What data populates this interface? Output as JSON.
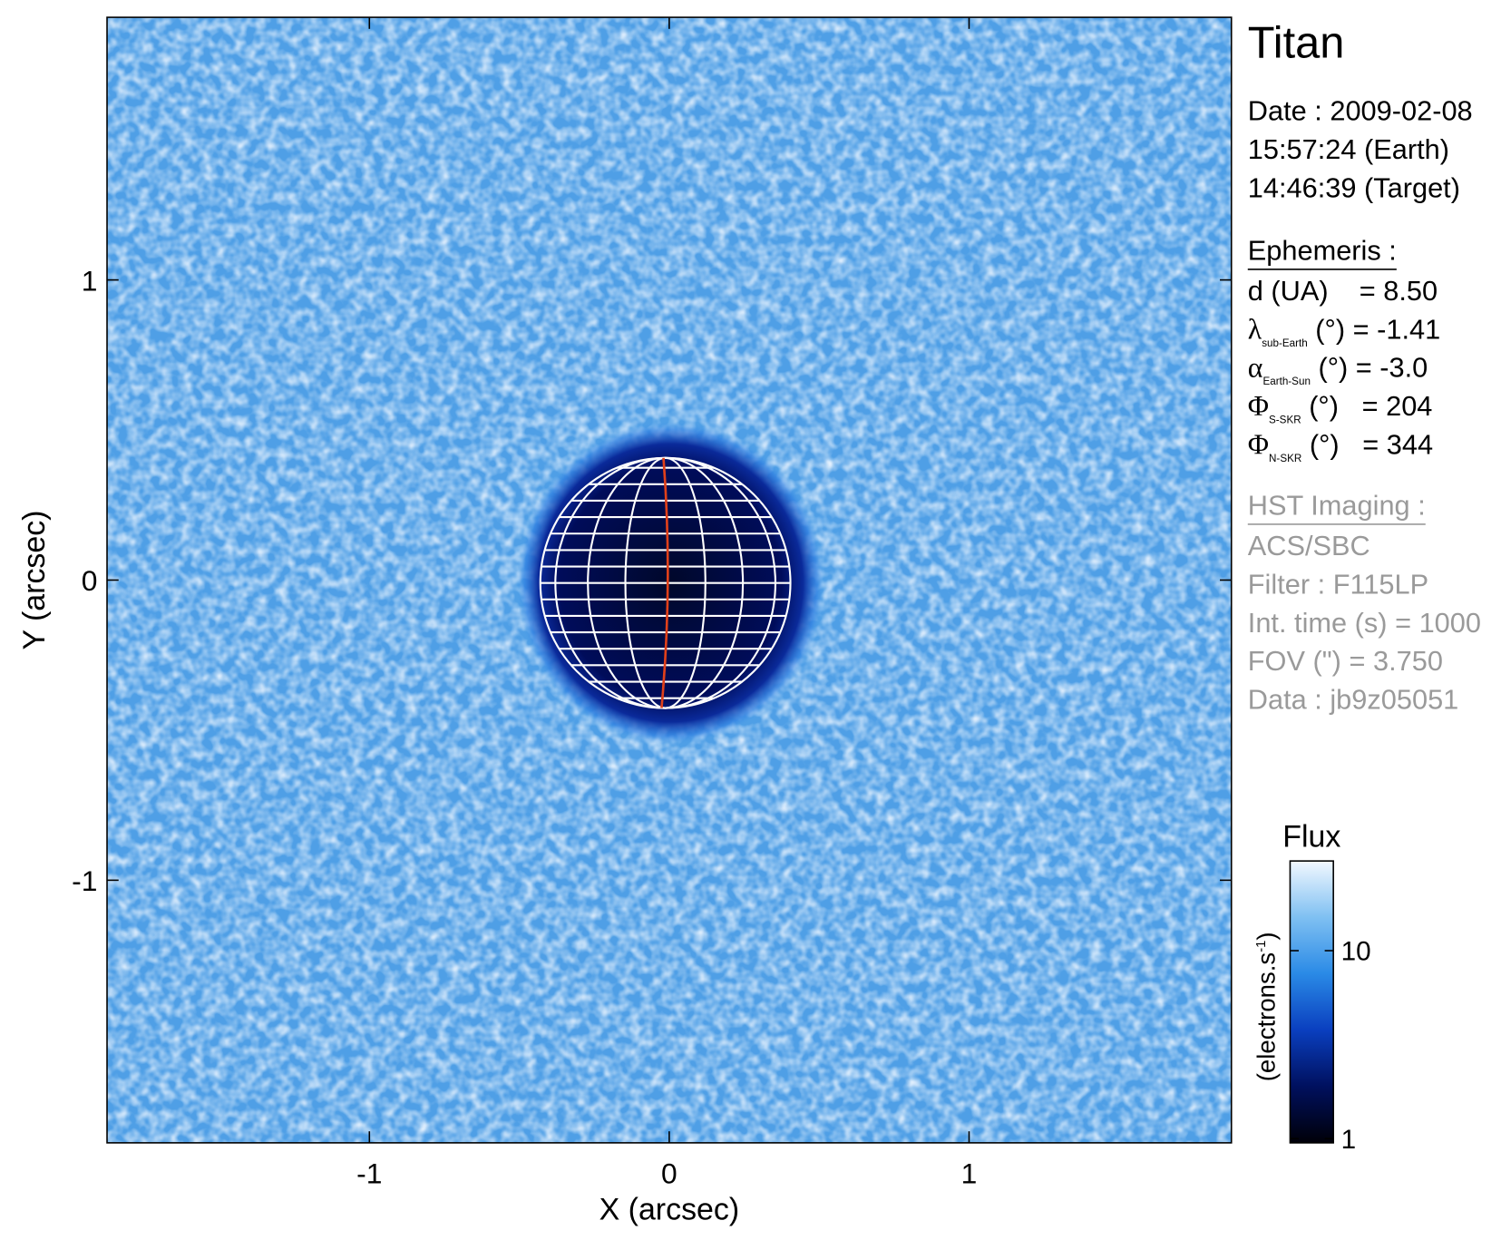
{
  "chart_data": {
    "type": "image",
    "title": "Titan",
    "xlabel": "X (arcsec)",
    "ylabel": "Y (arcsec)",
    "xlim": [
      -1.875,
      1.875
    ],
    "ylim": [
      -1.875,
      1.875
    ],
    "xticks": [
      -1,
      0,
      1
    ],
    "yticks": [
      -1,
      0,
      1
    ],
    "colorbar": {
      "title": "Flux",
      "label": [
        "(electrons.s",
        "-1",
        ")"
      ],
      "scale": "log",
      "lim": [
        0.95,
        30
      ],
      "ticks": [
        1,
        10
      ],
      "colormap": [
        "#000008",
        "#00105e",
        "#0a3fbf",
        "#2a8ae6",
        "#7fc0f2",
        "#f2f8ff"
      ]
    },
    "info": {
      "date": [
        "Date : 2009-02-08",
        "15:57:24 (Earth)",
        "14:46:39 (Target)"
      ],
      "ephemeris_title": "Ephemeris :",
      "ephemeris": [
        {
          "text": "d (UA)    = 8.50"
        },
        {
          "symbol": "λ",
          "sub": "sub-Earth",
          "text": " (°) = -1.41"
        },
        {
          "symbol": "α",
          "sub": "Earth-Sun",
          "text": " (°) = -3.0"
        },
        {
          "symbol": "Φ",
          "sub": "S-SKR",
          "text": " (°)   = 204"
        },
        {
          "symbol": "Φ",
          "sub": "N-SKR",
          "text": " (°)   = 344"
        }
      ],
      "imaging_title": "HST Imaging :",
      "imaging": [
        "ACS/SBC",
        "Filter : F115LP",
        "Int. time (s) = 1000",
        "FOV (\") = 3.750",
        "Data : jb9z05051"
      ]
    }
  }
}
